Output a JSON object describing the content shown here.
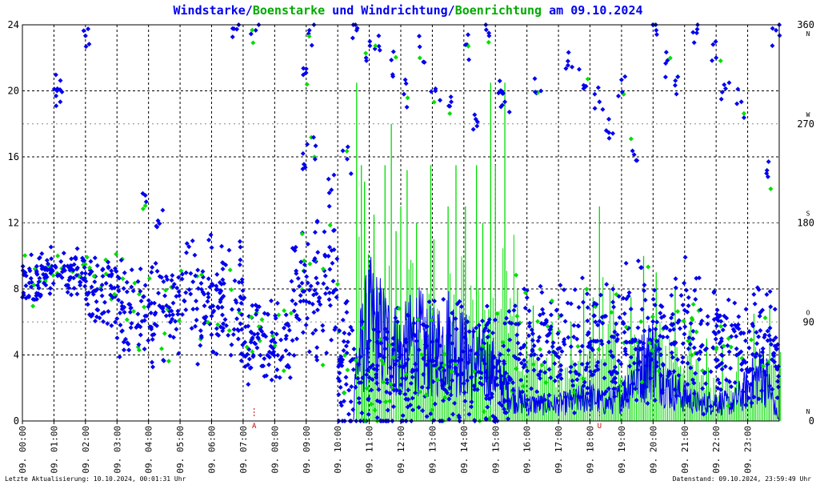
{
  "chart_data": {
    "type": "scatter",
    "title": {
      "part1": "Windstarke",
      "sep1": "/",
      "part2": "Boenstarke",
      "mid": " und ",
      "part3": "Windrichtung",
      "sep2": "/",
      "part4": "Boenrichtung",
      "tail": " am 09.10.2024"
    },
    "colors": {
      "wind": "#0000ee",
      "gust": "#00dd00",
      "grid": "#000000",
      "markers": "#cc0000"
    },
    "y_left": {
      "min": 0,
      "max": 24,
      "ticks": [
        "0",
        "4",
        "8",
        "12",
        "16",
        "20",
        "24"
      ]
    },
    "y_right": {
      "min": 0,
      "max": 360,
      "ticks": [
        "0",
        "90",
        "180",
        "270",
        "360"
      ],
      "compass": [
        "N",
        "O",
        "S",
        "W",
        "N"
      ]
    },
    "x": {
      "min_hour": 0,
      "max_hour": 24,
      "ticks": [
        "09. 00:00",
        "09. 01:00",
        "09. 02:00",
        "09. 03:00",
        "09. 04:00",
        "09. 05:00",
        "09. 06:00",
        "09. 07:00",
        "09. 08:00",
        "09. 09:00",
        "09. 10:00",
        "09. 11:00",
        "09. 12:00",
        "09. 13:00",
        "09. 14:00",
        "09. 15:00",
        "09. 16:00",
        "09. 17:00",
        "09. 18:00",
        "09. 19:00",
        "09. 20:00",
        "09. 21:00",
        "09. 22:00",
        "09. 23:00"
      ]
    },
    "event_markers": [
      {
        "hour": 7.35,
        "label": "A"
      },
      {
        "hour": 18.3,
        "label": "U"
      }
    ],
    "wind_speed_segments": [
      [
        0.0,
        0
      ],
      [
        10.5,
        0
      ],
      [
        10.55,
        3
      ],
      [
        11.0,
        6
      ],
      [
        11.5,
        5
      ],
      [
        12.0,
        4
      ],
      [
        12.5,
        5
      ],
      [
        13.0,
        4
      ],
      [
        13.5,
        5
      ],
      [
        14.0,
        4
      ],
      [
        14.5,
        3.5
      ],
      [
        15.0,
        3
      ],
      [
        15.5,
        1.5
      ],
      [
        16.0,
        1
      ],
      [
        16.5,
        1
      ],
      [
        17.0,
        1
      ],
      [
        17.5,
        1.2
      ],
      [
        18.0,
        1.5
      ],
      [
        18.5,
        1
      ],
      [
        19.0,
        1.5
      ],
      [
        19.5,
        3
      ],
      [
        20.0,
        4
      ],
      [
        20.5,
        2
      ],
      [
        21.0,
        1.5
      ],
      [
        21.5,
        1
      ],
      [
        22.0,
        1.2
      ],
      [
        22.5,
        1
      ],
      [
        23.0,
        2
      ],
      [
        23.5,
        3
      ],
      [
        24.0,
        0
      ]
    ],
    "gust_peaks": [
      [
        10.6,
        20.5
      ],
      [
        10.75,
        15.5
      ],
      [
        10.85,
        14.5
      ],
      [
        11.15,
        12.5
      ],
      [
        11.5,
        15.5
      ],
      [
        11.7,
        18
      ],
      [
        11.85,
        11.5
      ],
      [
        12.0,
        13
      ],
      [
        12.2,
        15.2
      ],
      [
        12.5,
        12
      ],
      [
        12.95,
        15.5
      ],
      [
        13.05,
        11
      ],
      [
        13.5,
        13
      ],
      [
        13.75,
        15.5
      ],
      [
        14.05,
        13
      ],
      [
        14.4,
        15.5
      ],
      [
        14.6,
        12
      ],
      [
        14.85,
        20.5
      ],
      [
        15.0,
        15.5
      ],
      [
        15.3,
        20.5
      ],
      [
        15.7,
        8
      ],
      [
        16.2,
        7
      ],
      [
        16.8,
        6
      ],
      [
        17.4,
        6
      ],
      [
        17.8,
        8
      ],
      [
        18.1,
        7.5
      ],
      [
        18.3,
        13
      ],
      [
        18.8,
        6
      ],
      [
        19.3,
        7.5
      ],
      [
        19.7,
        10
      ],
      [
        20.1,
        9
      ],
      [
        20.7,
        8
      ],
      [
        21.2,
        6
      ],
      [
        21.7,
        5
      ],
      [
        22.2,
        4.5
      ],
      [
        22.7,
        4
      ],
      [
        23.2,
        6.5
      ],
      [
        23.7,
        7
      ]
    ],
    "direction_bands": [
      {
        "from": 0.0,
        "to": 0.5,
        "center": 125,
        "spread": 20
      },
      {
        "from": 0.5,
        "to": 2.0,
        "center": 135,
        "spread": 15
      },
      {
        "from": 2.0,
        "to": 3.0,
        "center": 120,
        "spread": 25
      },
      {
        "from": 3.0,
        "to": 5.0,
        "center": 100,
        "spread": 35
      },
      {
        "from": 5.0,
        "to": 7.0,
        "center": 110,
        "spread": 40
      },
      {
        "from": 7.0,
        "to": 8.5,
        "center": 75,
        "spread": 30
      },
      {
        "from": 8.5,
        "to": 10.0,
        "center": 115,
        "spread": 45
      },
      {
        "from": 10.0,
        "to": 15.5,
        "center": 45,
        "spread": 45
      },
      {
        "from": 15.5,
        "to": 19.0,
        "center": 70,
        "spread": 40
      },
      {
        "from": 19.0,
        "to": 21.5,
        "center": 80,
        "spread": 45
      },
      {
        "from": 21.5,
        "to": 24.0,
        "center": 65,
        "spread": 40
      }
    ],
    "direction_scatter_high": [
      [
        1.1,
        300
      ],
      [
        1.2,
        290
      ],
      [
        2.0,
        350
      ],
      [
        3.9,
        205
      ],
      [
        4.3,
        182
      ],
      [
        6.8,
        356
      ],
      [
        7.4,
        355
      ],
      [
        8.9,
        243
      ],
      [
        9.0,
        320
      ],
      [
        9.1,
        355
      ],
      [
        9.3,
        250
      ],
      [
        9.8,
        210
      ],
      [
        10.3,
        238
      ],
      [
        10.6,
        355
      ],
      [
        10.9,
        330
      ],
      [
        11.3,
        350
      ],
      [
        11.7,
        328
      ],
      [
        12.1,
        297
      ],
      [
        12.6,
        340
      ],
      [
        13.1,
        300
      ],
      [
        13.6,
        290
      ],
      [
        14.1,
        342
      ],
      [
        14.3,
        265
      ],
      [
        14.8,
        350
      ],
      [
        15.1,
        298
      ],
      [
        15.3,
        290
      ],
      [
        16.3,
        298
      ],
      [
        17.3,
        327
      ],
      [
        17.8,
        305
      ],
      [
        18.3,
        290
      ],
      [
        18.6,
        262
      ],
      [
        19.0,
        310
      ],
      [
        19.4,
        242
      ],
      [
        20.1,
        355
      ],
      [
        20.4,
        325
      ],
      [
        20.7,
        305
      ],
      [
        21.4,
        356
      ],
      [
        22.0,
        330
      ],
      [
        22.3,
        302
      ],
      [
        22.8,
        290
      ],
      [
        23.6,
        225
      ],
      [
        23.9,
        355
      ]
    ]
  },
  "footer": {
    "left": "Letzte Aktualisierung: 10.10.2024, 00:01:31 Uhr",
    "right": "Datenstand: 09.10.2024, 23:59:49 Uhr"
  }
}
